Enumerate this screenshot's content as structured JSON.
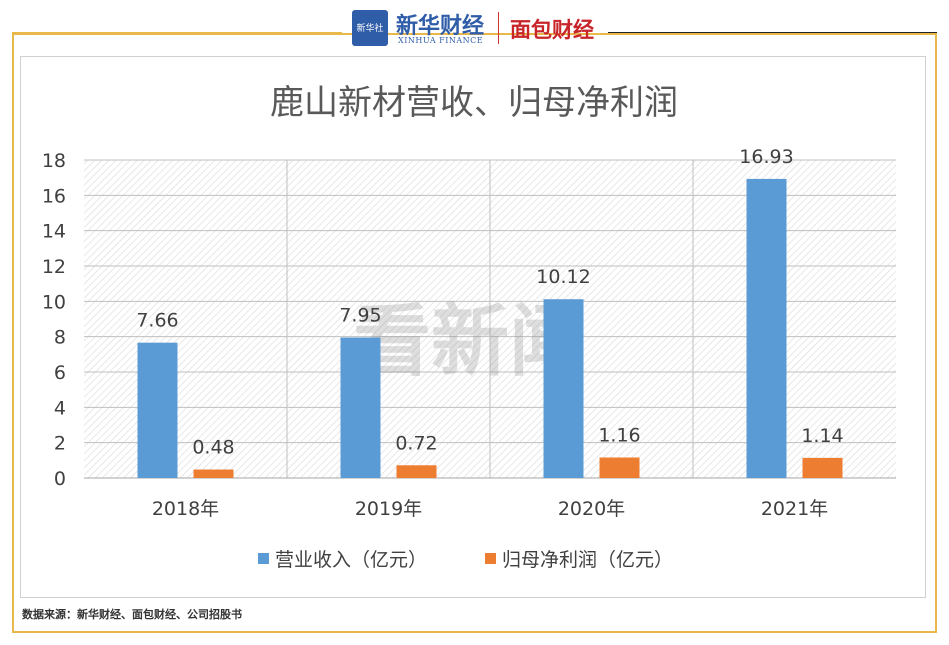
{
  "header": {
    "logo_badge": "新华社",
    "brand_cn": "新华财经",
    "brand_en": "XINHUA FINANCE",
    "brand2": "面包财经"
  },
  "watermark": "看新闻",
  "footer": {
    "source": "数据来源：新华财经、面包财经、公司招股书"
  },
  "colors": {
    "revenue": "#5b9bd5",
    "profit": "#ed7d31",
    "border": "#e8b84a"
  },
  "chart_data": {
    "type": "bar",
    "title": "鹿山新材营收、归母净利润",
    "categories": [
      "2018年",
      "2019年",
      "2020年",
      "2021年"
    ],
    "series": [
      {
        "name": "营业收入（亿元）",
        "values": [
          7.66,
          7.95,
          10.12,
          16.93
        ],
        "labels": [
          "7.66",
          "7.95",
          "10.12",
          "16.93"
        ]
      },
      {
        "name": "归母净利润（亿元）",
        "values": [
          0.48,
          0.72,
          1.16,
          1.14
        ],
        "labels": [
          "0.48",
          "0.72",
          "1.16",
          "1.14"
        ]
      }
    ],
    "ylim": [
      0,
      18
    ],
    "yticks": [
      "0",
      "2",
      "4",
      "6",
      "8",
      "10",
      "12",
      "14",
      "16",
      "18"
    ],
    "xlabel": "",
    "ylabel": "",
    "legend": "bottom"
  }
}
